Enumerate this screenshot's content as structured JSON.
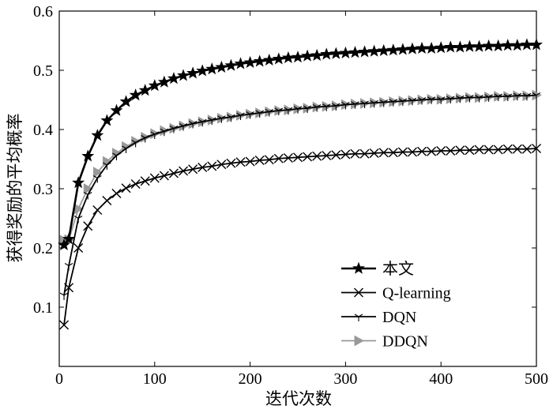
{
  "chart_data": {
    "type": "line",
    "title": "",
    "xlabel": "迭代次数",
    "ylabel": "获得奖励的平均概率",
    "xlim": [
      0,
      500
    ],
    "ylim": [
      0,
      0.6
    ],
    "xticks": [
      0,
      100,
      200,
      300,
      400,
      500
    ],
    "yticks": [
      0.1,
      0.2,
      0.3,
      0.4,
      0.5,
      0.6
    ],
    "grid": false,
    "legend_position": "bottom-right",
    "series": [
      {
        "name": "本文",
        "color": "#000000",
        "marker": "star",
        "x": [
          5,
          10,
          20,
          30,
          40,
          50,
          60,
          70,
          80,
          90,
          100,
          110,
          120,
          130,
          140,
          150,
          160,
          170,
          180,
          190,
          200,
          210,
          220,
          230,
          240,
          250,
          260,
          270,
          280,
          290,
          300,
          310,
          320,
          330,
          340,
          350,
          360,
          370,
          380,
          390,
          400,
          410,
          420,
          430,
          440,
          450,
          460,
          470,
          480,
          490,
          500
        ],
        "values": [
          0.205,
          0.215,
          0.31,
          0.355,
          0.39,
          0.415,
          0.432,
          0.447,
          0.458,
          0.466,
          0.474,
          0.48,
          0.486,
          0.491,
          0.495,
          0.499,
          0.502,
          0.505,
          0.508,
          0.511,
          0.513,
          0.515,
          0.517,
          0.519,
          0.521,
          0.522,
          0.524,
          0.525,
          0.527,
          0.528,
          0.529,
          0.53,
          0.531,
          0.532,
          0.533,
          0.534,
          0.535,
          0.536,
          0.537,
          0.537,
          0.538,
          0.539,
          0.539,
          0.54,
          0.54,
          0.541,
          0.541,
          0.542,
          0.542,
          0.543,
          0.543
        ]
      },
      {
        "name": "Q-learning",
        "color": "#000000",
        "marker": "x",
        "x": [
          5,
          10,
          20,
          30,
          40,
          50,
          60,
          70,
          80,
          90,
          100,
          110,
          120,
          130,
          140,
          150,
          160,
          170,
          180,
          190,
          200,
          210,
          220,
          230,
          240,
          250,
          260,
          270,
          280,
          290,
          300,
          310,
          320,
          330,
          340,
          350,
          360,
          370,
          380,
          390,
          400,
          410,
          420,
          430,
          440,
          450,
          460,
          470,
          480,
          490,
          500
        ],
        "values": [
          0.07,
          0.133,
          0.2,
          0.237,
          0.264,
          0.28,
          0.292,
          0.301,
          0.308,
          0.313,
          0.318,
          0.322,
          0.326,
          0.33,
          0.333,
          0.336,
          0.338,
          0.341,
          0.343,
          0.345,
          0.346,
          0.348,
          0.349,
          0.351,
          0.352,
          0.353,
          0.354,
          0.355,
          0.356,
          0.357,
          0.358,
          0.359,
          0.359,
          0.36,
          0.361,
          0.361,
          0.362,
          0.362,
          0.363,
          0.363,
          0.364,
          0.364,
          0.365,
          0.365,
          0.366,
          0.366,
          0.366,
          0.367,
          0.367,
          0.367,
          0.368
        ]
      },
      {
        "name": "DQN",
        "color": "#000000",
        "marker": "tri",
        "x": [
          5,
          10,
          20,
          30,
          40,
          50,
          60,
          70,
          80,
          90,
          100,
          110,
          120,
          130,
          140,
          150,
          160,
          170,
          180,
          190,
          200,
          210,
          220,
          230,
          240,
          250,
          260,
          270,
          280,
          290,
          300,
          310,
          320,
          330,
          340,
          350,
          360,
          370,
          380,
          390,
          400,
          410,
          420,
          430,
          440,
          450,
          460,
          470,
          480,
          490,
          500
        ],
        "values": [
          0.12,
          0.17,
          0.25,
          0.29,
          0.318,
          0.34,
          0.356,
          0.368,
          0.378,
          0.386,
          0.392,
          0.397,
          0.402,
          0.406,
          0.41,
          0.413,
          0.416,
          0.419,
          0.421,
          0.424,
          0.426,
          0.428,
          0.43,
          0.432,
          0.433,
          0.435,
          0.436,
          0.438,
          0.439,
          0.44,
          0.442,
          0.443,
          0.444,
          0.445,
          0.446,
          0.447,
          0.448,
          0.449,
          0.45,
          0.451,
          0.451,
          0.452,
          0.453,
          0.454,
          0.454,
          0.455,
          0.456,
          0.456,
          0.457,
          0.457,
          0.458
        ]
      },
      {
        "name": "DDQN",
        "color": "#999999",
        "marker": "triangle-right",
        "x": [
          5,
          10,
          20,
          30,
          40,
          50,
          60,
          70,
          80,
          90,
          100,
          110,
          120,
          130,
          140,
          150,
          160,
          170,
          180,
          190,
          200,
          210,
          220,
          230,
          240,
          250,
          260,
          270,
          280,
          290,
          300,
          310,
          320,
          330,
          340,
          350,
          360,
          370,
          380,
          390,
          400,
          410,
          420,
          430,
          440,
          450,
          460,
          470,
          480,
          490,
          500
        ],
        "values": [
          0.213,
          0.214,
          0.266,
          0.3,
          0.328,
          0.346,
          0.36,
          0.371,
          0.38,
          0.387,
          0.393,
          0.398,
          0.402,
          0.406,
          0.41,
          0.413,
          0.416,
          0.419,
          0.421,
          0.424,
          0.426,
          0.428,
          0.43,
          0.432,
          0.433,
          0.435,
          0.436,
          0.438,
          0.439,
          0.44,
          0.442,
          0.443,
          0.444,
          0.445,
          0.446,
          0.447,
          0.448,
          0.449,
          0.45,
          0.451,
          0.451,
          0.452,
          0.453,
          0.454,
          0.454,
          0.455,
          0.456,
          0.456,
          0.457,
          0.457,
          0.458
        ]
      }
    ]
  }
}
